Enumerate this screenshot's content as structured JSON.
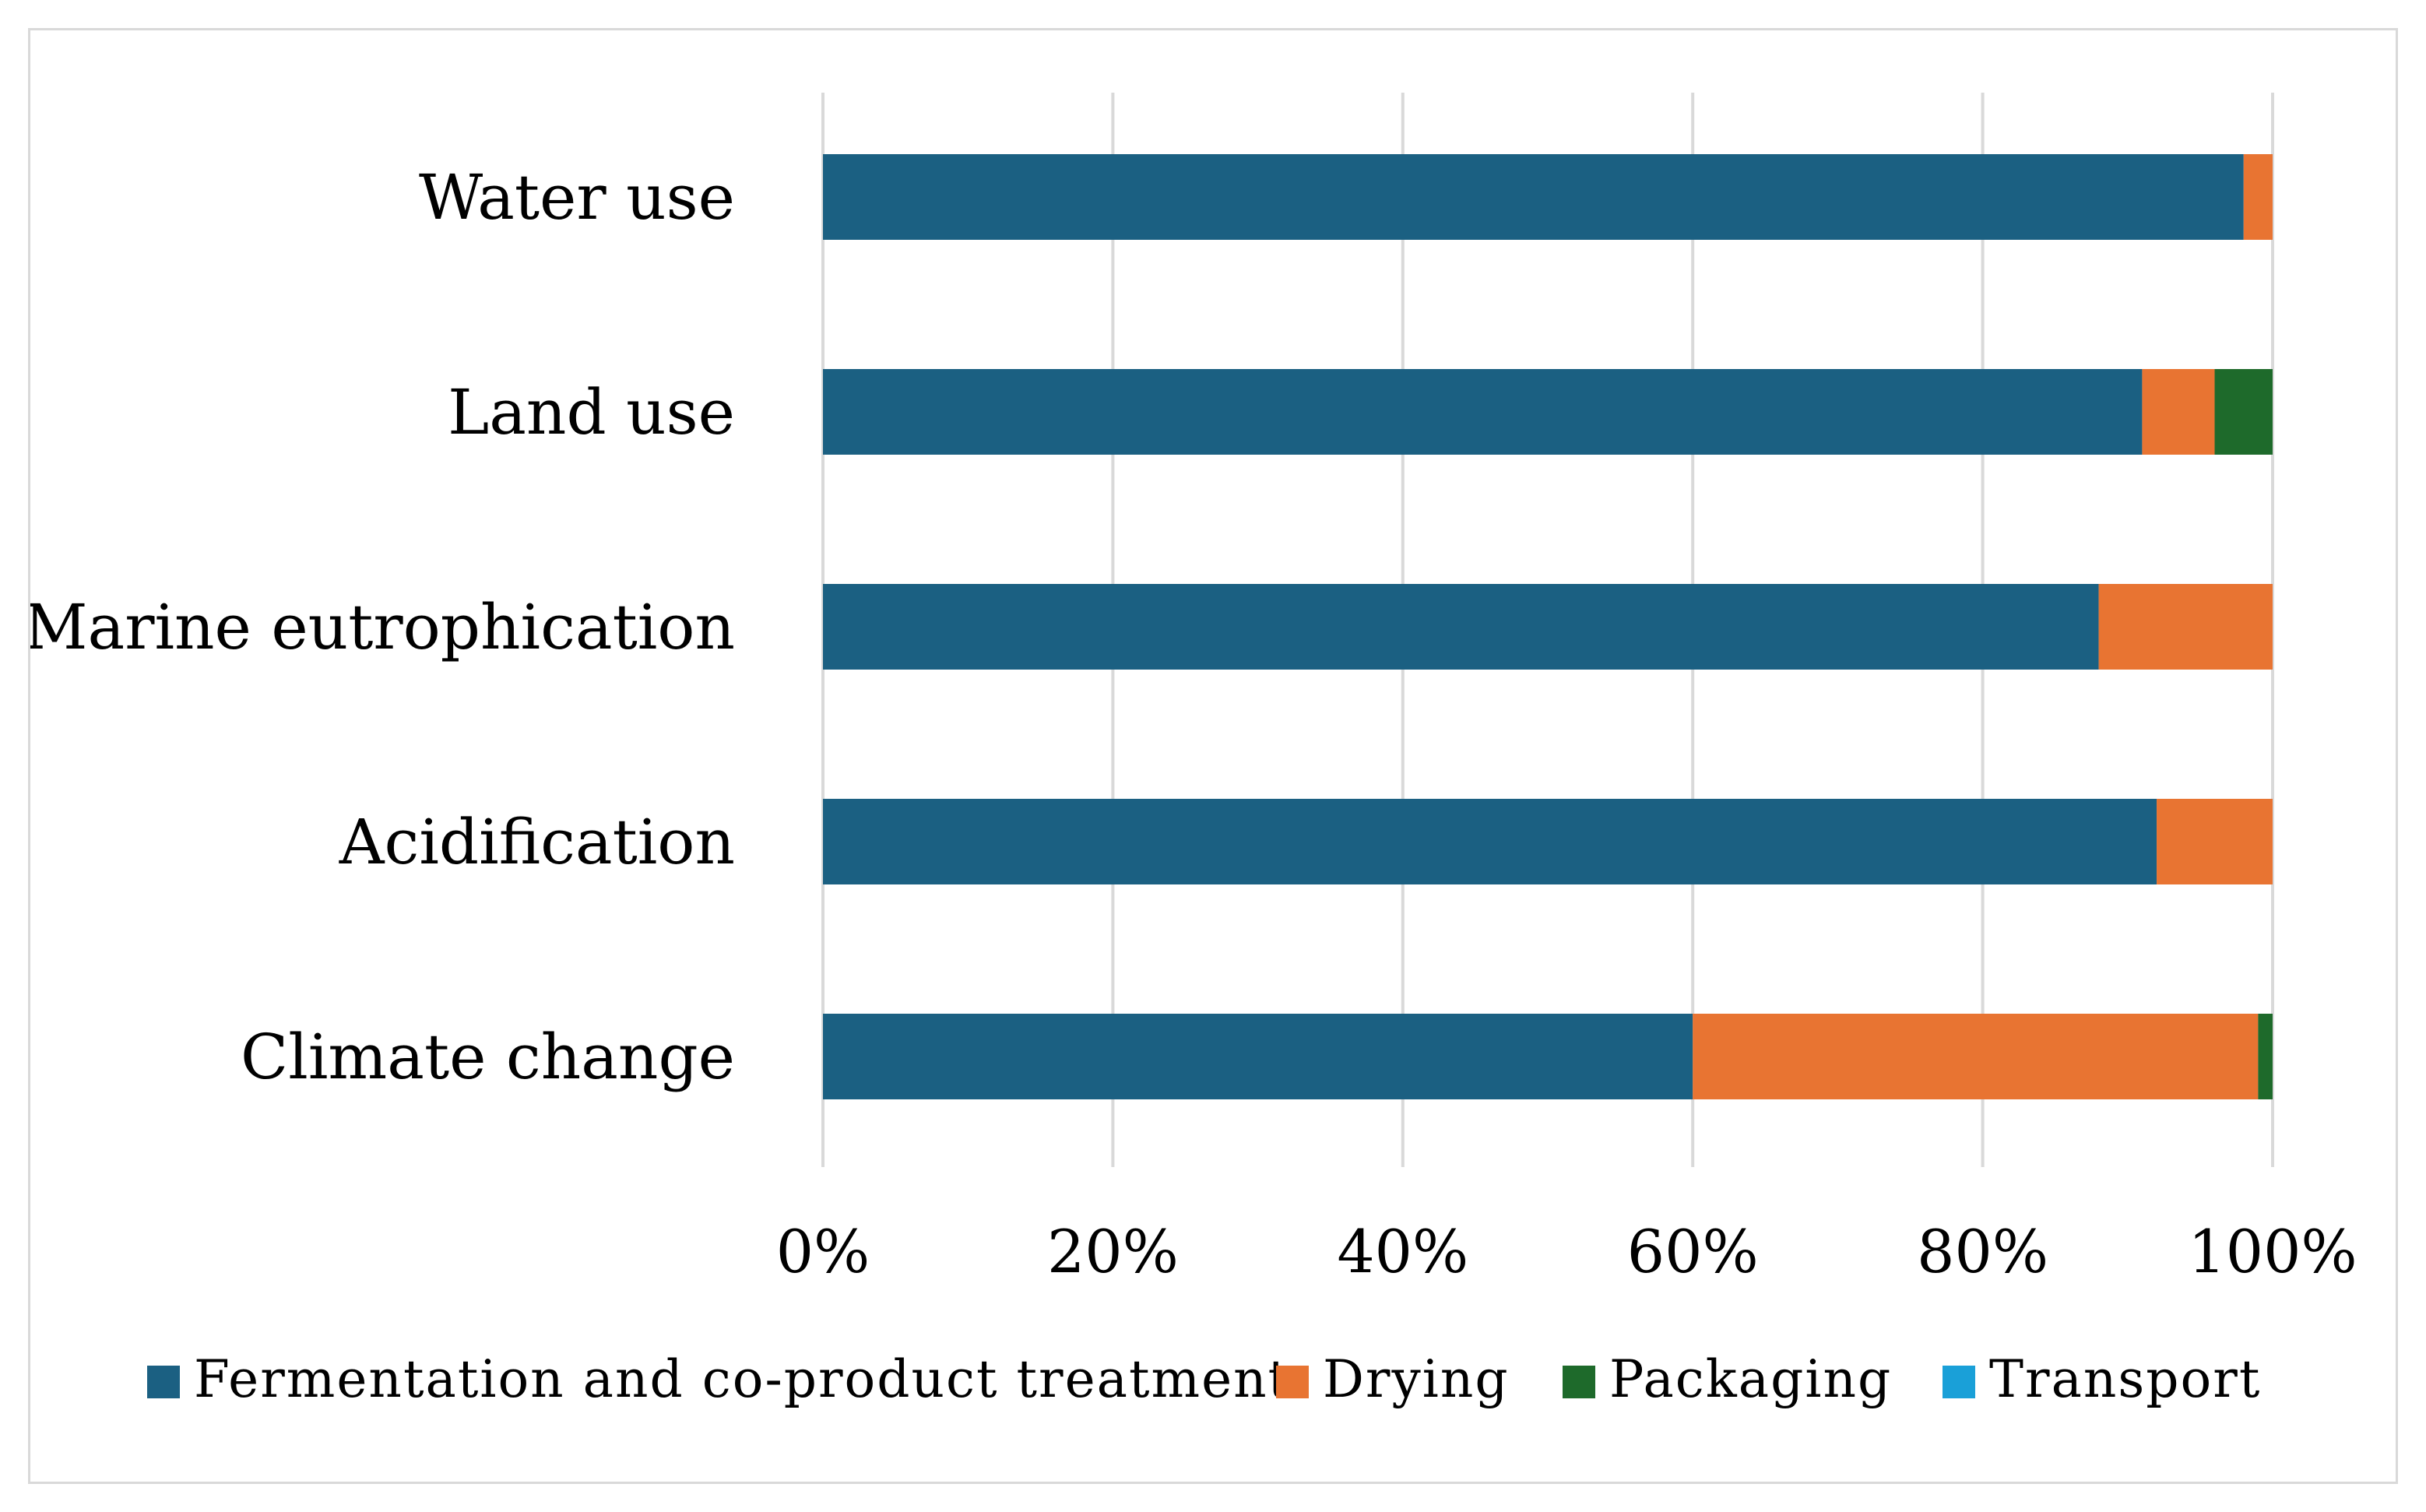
{
  "chart_data": {
    "type": "bar",
    "orientation": "horizontal",
    "stacked": true,
    "title": "",
    "xlabel": "",
    "ylabel": "",
    "xlim": [
      0,
      100
    ],
    "grid": true,
    "legend_position": "bottom",
    "categories": [
      "Water use",
      "Land use",
      "Marine eutrophication",
      "Acidification",
      "Climate change"
    ],
    "x_tick_labels": [
      "0%",
      "20%",
      "40%",
      "60%",
      "80%",
      "100%"
    ],
    "series": [
      {
        "name": "Fermentation and co-product treatment",
        "color": "#1b6082",
        "values": [
          98,
          91,
          88,
          92,
          60
        ]
      },
      {
        "name": "Drying",
        "color": "#e87432",
        "values": [
          2,
          5,
          12,
          8,
          39
        ]
      },
      {
        "name": "Packaging",
        "color": "#1e6a2b",
        "values": [
          0,
          4,
          0,
          0,
          1
        ]
      },
      {
        "name": "Transport",
        "color": "#1aa0d8",
        "values": [
          0,
          0,
          0,
          0,
          0
        ]
      }
    ]
  }
}
